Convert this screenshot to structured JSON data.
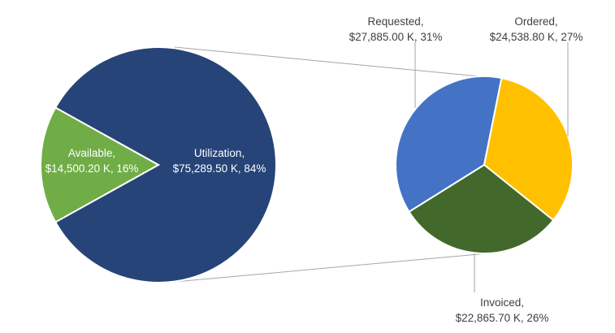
{
  "chart_data": {
    "type": "pie",
    "subtype": "pie-of-pie",
    "main_pie": {
      "slices": [
        {
          "label": "Utilization",
          "value": 75289.5,
          "display_value": "$75,289.50 K",
          "percent": "84%",
          "color": "#264478"
        },
        {
          "label": "Available",
          "value": 14500.2,
          "display_value": "$14,500.20 K",
          "percent": "16%",
          "color": "#70AD47"
        }
      ]
    },
    "breakout_pie": {
      "parent_slice": "Utilization",
      "slices": [
        {
          "label": "Requested",
          "value": 27885.0,
          "display_value": "$27,885.00 K",
          "percent": "31%",
          "color": "#4472C4"
        },
        {
          "label": "Ordered",
          "value": 24538.8,
          "display_value": "$24,538.80 K",
          "percent": "27%",
          "color": "#FFC000"
        },
        {
          "label": "Invoiced",
          "value": 22865.7,
          "display_value": "$22,865.70 K",
          "percent": "26%",
          "color": "#43682B"
        }
      ]
    },
    "legend": "none",
    "label_format": "category, value, percent"
  }
}
